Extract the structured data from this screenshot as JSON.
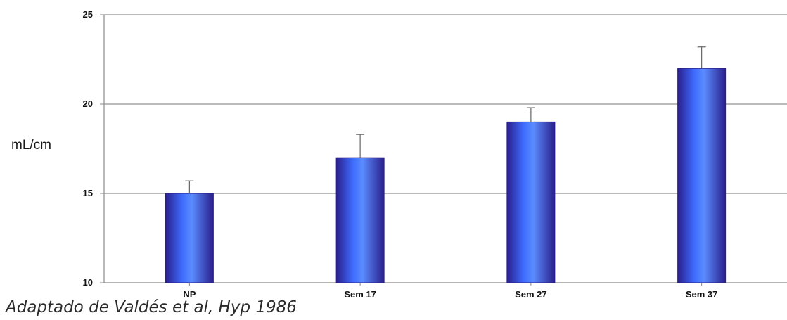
{
  "chart_data": {
    "type": "bar",
    "categories": [
      "NP",
      "Sem 17",
      "Sem 27",
      "Sem 37"
    ],
    "values": [
      15,
      17,
      19,
      22
    ],
    "error_upper": [
      15.7,
      18.3,
      19.8,
      23.2
    ],
    "title": "",
    "xlabel": "",
    "ylabel": "mL/cm",
    "ylim": [
      10,
      25
    ],
    "yticks": [
      "10",
      "15",
      "20",
      "25"
    ],
    "grid": true,
    "legend": "none",
    "caption": "Adaptado de Valdés et al, Hyp 1986",
    "colors": {
      "bar_edge": "#2a1f8c",
      "bar_mid": "#3f6cff",
      "bar_light": "#5a8cff",
      "grid": "#7a7a7a",
      "axis": "#8a8a8a",
      "error": "#666666"
    }
  }
}
